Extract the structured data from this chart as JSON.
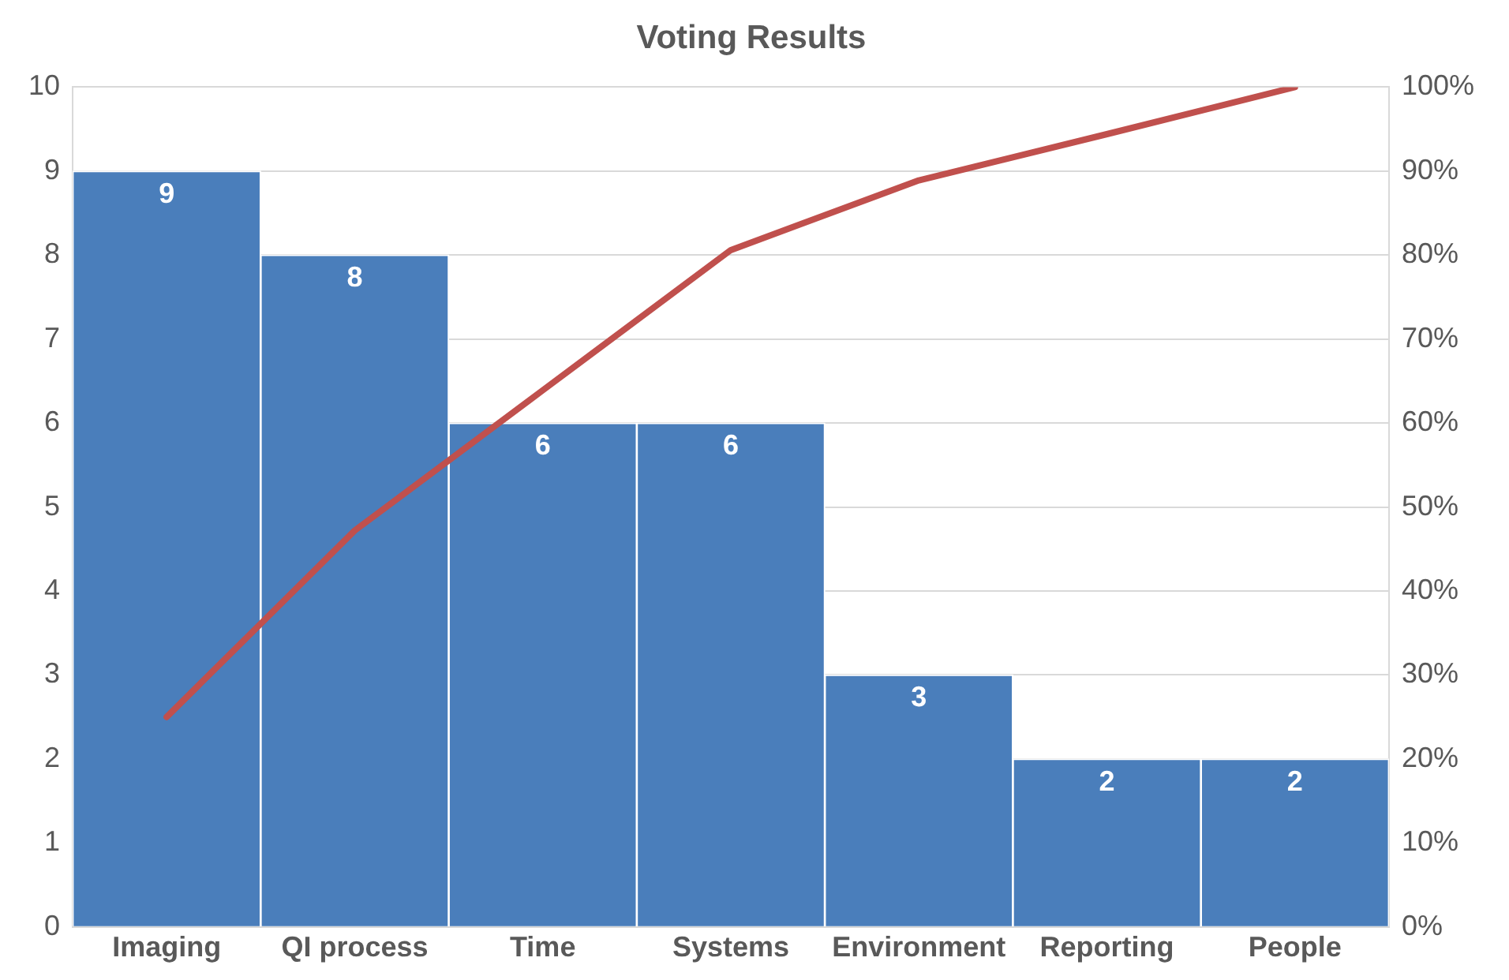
{
  "chart_data": {
    "type": "bar",
    "title": "Voting Results",
    "categories": [
      "Imaging",
      "QI process",
      "Time",
      "Systems",
      "Environment",
      "Reporting",
      "People"
    ],
    "series": [
      {
        "color": "#4a7ebb",
        "values": [
          9,
          8,
          6,
          6,
          3,
          2,
          2
        ],
        "value_labels": [
          "9",
          "8",
          "6",
          "6",
          "3",
          "2",
          "2"
        ]
      },
      {
        "type": "line",
        "axis": "y2",
        "color": "#c0504d",
        "values": [
          25,
          47.2,
          63.9,
          80.6,
          88.9,
          94.4,
          100
        ]
      }
    ],
    "ylim": [
      0,
      10
    ],
    "yticks": [
      0,
      1,
      2,
      3,
      4,
      5,
      6,
      7,
      8,
      9,
      10
    ],
    "y2lim": [
      0,
      100
    ],
    "y2ticks": [
      {
        "value": 0,
        "label": "0%"
      },
      {
        "value": 10,
        "label": "10%"
      },
      {
        "value": 20,
        "label": "20%"
      },
      {
        "value": 30,
        "label": "30%"
      },
      {
        "value": 40,
        "label": "40%"
      },
      {
        "value": 50,
        "label": "50%"
      },
      {
        "value": 60,
        "label": "60%"
      },
      {
        "value": 70,
        "label": "70%"
      },
      {
        "value": 80,
        "label": "80%"
      },
      {
        "value": 90,
        "label": "90%"
      },
      {
        "value": 100,
        "label": "100%"
      }
    ],
    "grid": "y",
    "legend": false,
    "marker": "none"
  }
}
